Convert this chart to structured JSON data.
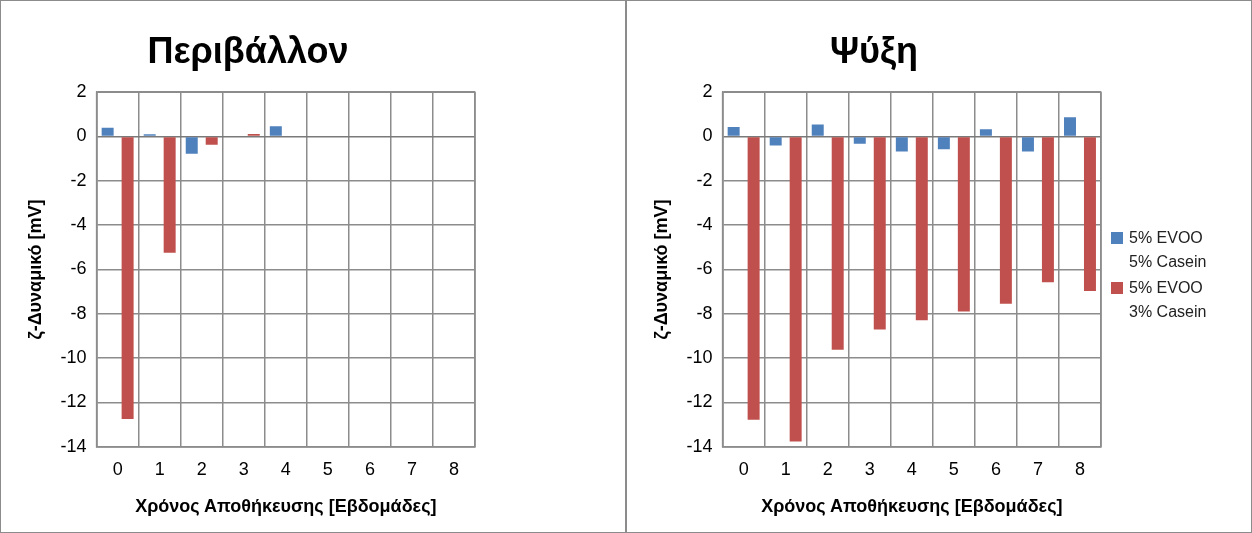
{
  "chart_data": [
    {
      "type": "bar",
      "title": "Περιβάλλον",
      "xlabel": "Χρόνος Αποθήκευσης [Εβδομάδες]",
      "ylabel": "ζ-Δυναμικό [mV]",
      "categories": [
        "0",
        "1",
        "2",
        "3",
        "4",
        "5",
        "6",
        "7",
        "8"
      ],
      "series": [
        {
          "color": "#4f81bd",
          "values": [
            0.4,
            0.1,
            -0.78,
            null,
            0.46,
            null,
            null,
            null,
            null
          ]
        },
        {
          "color": "#c0504d",
          "values": [
            -12.75,
            -5.24,
            -0.37,
            0.11,
            null,
            null,
            null,
            null,
            null
          ]
        }
      ],
      "ylim": [
        -14,
        2
      ],
      "yticks": [
        -14,
        -12,
        -10,
        -8,
        -6,
        -4,
        -2,
        0,
        2
      ],
      "grid": true,
      "legend": false
    },
    {
      "type": "bar",
      "title": "Ψύξη",
      "xlabel": "Χρόνος Αποθήκευσης [Εβδομάδες]",
      "ylabel": "ζ-Δυναμικό [mV]",
      "categories": [
        "0",
        "1",
        "2",
        "3",
        "4",
        "5",
        "6",
        "7",
        "8"
      ],
      "series": [
        {
          "name": "5% EVOO 5% Casein",
          "color": "#4f81bd",
          "values": [
            0.43,
            -0.41,
            0.54,
            -0.33,
            -0.68,
            -0.57,
            0.33,
            -0.68,
            0.87
          ]
        },
        {
          "name": "5% EVOO 3% Casein",
          "color": "#c0504d",
          "values": [
            -12.78,
            -13.76,
            -9.62,
            -8.71,
            -8.29,
            -7.89,
            -7.54,
            -6.57,
            -6.97
          ]
        }
      ],
      "ylim": [
        -14,
        2
      ],
      "yticks": [
        -14,
        -12,
        -10,
        -8,
        -6,
        -4,
        -2,
        0,
        2
      ],
      "grid": true,
      "legend": "right"
    }
  ]
}
